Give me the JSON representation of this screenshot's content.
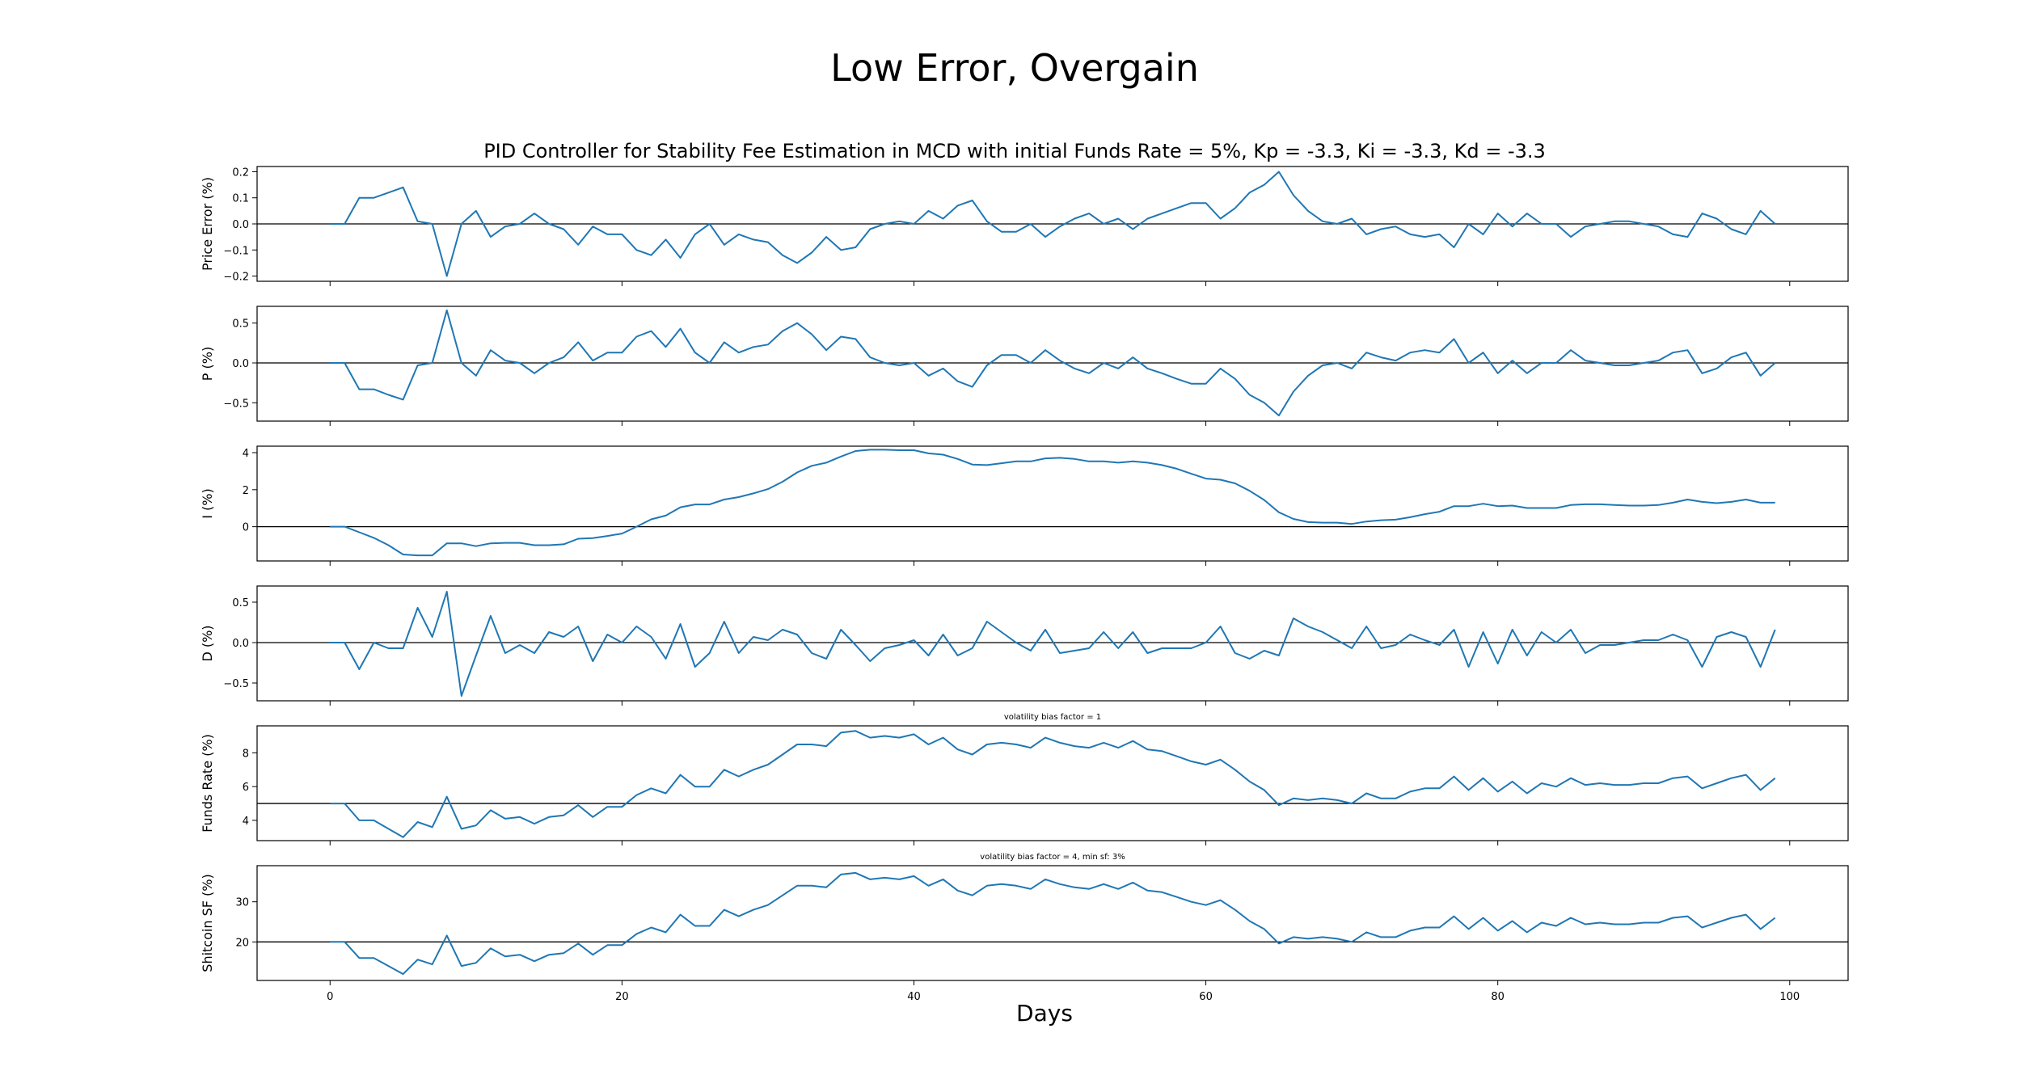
{
  "figure": {
    "title": "Low Error, Overgain",
    "subtitle": "PID Controller for Stability Fee Estimation in MCD with initial Funds Rate = 5%, Kp = -3.3, Ki = -3.3, Kd = -3.3",
    "xlabel": "Days"
  },
  "colors": {
    "line": "#1f77b4",
    "refline": "#000000",
    "axes": "#000000"
  },
  "chart_data": [
    {
      "type": "line",
      "ylabel": "Price Error (%)",
      "ylim": [
        -0.22,
        0.22
      ],
      "yticks": [
        0.2,
        0.1,
        0.0,
        -0.1,
        -0.2
      ],
      "ytick_labels": [
        "0.2",
        "0.1",
        "0.0",
        "−0.1",
        "−0.2"
      ],
      "hline": 0,
      "annotation": "",
      "x_start": 0,
      "values": [
        0,
        0,
        0.1,
        0.1,
        0.12,
        0.14,
        0.01,
        0,
        -0.2,
        0,
        0.05,
        -0.05,
        -0.01,
        0,
        0.04,
        0,
        -0.02,
        -0.08,
        -0.01,
        -0.04,
        -0.04,
        -0.1,
        -0.12,
        -0.06,
        -0.13,
        -0.04,
        0,
        -0.08,
        -0.04,
        -0.06,
        -0.07,
        -0.12,
        -0.15,
        -0.11,
        -0.05,
        -0.1,
        -0.09,
        -0.02,
        0,
        0.01,
        0,
        0.05,
        0.02,
        0.07,
        0.09,
        0.01,
        -0.03,
        -0.03,
        0,
        -0.05,
        -0.01,
        0.02,
        0.04,
        0,
        0.02,
        -0.02,
        0.02,
        0.04,
        0.06,
        0.08,
        0.08,
        0.02,
        0.06,
        0.12,
        0.15,
        0.2,
        0.11,
        0.05,
        0.01,
        0,
        0.02,
        -0.04,
        -0.02,
        -0.01,
        -0.04,
        -0.05,
        -0.04,
        -0.09,
        0,
        -0.04,
        0.04,
        -0.01,
        0.04,
        0,
        0,
        -0.05,
        -0.01,
        0,
        0.01,
        0.01,
        0,
        -0.01,
        -0.04,
        -0.05,
        0.04,
        0.02,
        -0.02,
        -0.04,
        0.05,
        0
      ]
    },
    {
      "type": "line",
      "ylabel": "P (%)",
      "ylim": [
        -0.73,
        0.71
      ],
      "yticks": [
        0.5,
        0.0,
        -0.5
      ],
      "ytick_labels": [
        "0.5",
        "0.0",
        "−0.5"
      ],
      "hline": 0,
      "annotation": "",
      "x_start": 0,
      "values": [
        0,
        0,
        -0.33,
        -0.33,
        -0.4,
        -0.46,
        -0.03,
        0,
        0.66,
        0,
        -0.16,
        0.16,
        0.03,
        0,
        -0.13,
        0,
        0.07,
        0.26,
        0.03,
        0.13,
        0.13,
        0.33,
        0.4,
        0.2,
        0.43,
        0.13,
        0,
        0.26,
        0.13,
        0.2,
        0.23,
        0.4,
        0.5,
        0.36,
        0.16,
        0.33,
        0.3,
        0.07,
        0,
        -0.03,
        0,
        -0.16,
        -0.07,
        -0.23,
        -0.3,
        -0.03,
        0.1,
        0.1,
        0,
        0.16,
        0.03,
        -0.07,
        -0.13,
        0,
        -0.07,
        0.07,
        -0.07,
        -0.13,
        -0.2,
        -0.26,
        -0.26,
        -0.07,
        -0.2,
        -0.4,
        -0.5,
        -0.66,
        -0.36,
        -0.16,
        -0.03,
        0,
        -0.07,
        0.13,
        0.07,
        0.03,
        0.13,
        0.16,
        0.13,
        0.3,
        0,
        0.13,
        -0.13,
        0.03,
        -0.13,
        0,
        0,
        0.16,
        0.03,
        0,
        -0.03,
        -0.03,
        0,
        0.03,
        0.13,
        0.16,
        -0.13,
        -0.07,
        0.07,
        0.13,
        -0.16,
        0
      ]
    },
    {
      "type": "line",
      "ylabel": "I (%)",
      "ylim": [
        -1.85,
        4.35
      ],
      "yticks": [
        4,
        2,
        0
      ],
      "ytick_labels": [
        "4",
        "2",
        "0"
      ],
      "hline": 0,
      "annotation": "",
      "x_start": 0,
      "values": [
        0,
        0,
        -0.3,
        -0.6,
        -1.0,
        -1.5,
        -1.55,
        -1.55,
        -0.9,
        -0.9,
        -1.05,
        -0.9,
        -0.87,
        -0.87,
        -1.0,
        -1.0,
        -0.95,
        -0.65,
        -0.62,
        -0.5,
        -0.37,
        0,
        0.4,
        0.6,
        1.05,
        1.2,
        1.2,
        1.47,
        1.6,
        1.8,
        2.03,
        2.43,
        2.93,
        3.29,
        3.46,
        3.79,
        4.09,
        4.16,
        4.16,
        4.13,
        4.13,
        3.96,
        3.89,
        3.66,
        3.36,
        3.33,
        3.43,
        3.53,
        3.53,
        3.69,
        3.72,
        3.66,
        3.53,
        3.53,
        3.46,
        3.53,
        3.46,
        3.33,
        3.13,
        2.86,
        2.6,
        2.54,
        2.34,
        1.94,
        1.44,
        0.78,
        0.42,
        0.25,
        0.22,
        0.22,
        0.15,
        0.28,
        0.35,
        0.38,
        0.51,
        0.68,
        0.81,
        1.11,
        1.11,
        1.24,
        1.11,
        1.14,
        1.01,
        1.01,
        1.01,
        1.17,
        1.21,
        1.21,
        1.17,
        1.14,
        1.14,
        1.17,
        1.3,
        1.47,
        1.34,
        1.27,
        1.34,
        1.47,
        1.3,
        1.3
      ]
    },
    {
      "type": "line",
      "ylabel": "D (%)",
      "ylim": [
        -0.72,
        0.7
      ],
      "yticks": [
        0.5,
        0.0,
        -0.5
      ],
      "ytick_labels": [
        "0.5",
        "0.0",
        "−0.5"
      ],
      "hline": 0,
      "annotation": "",
      "x_start": 0,
      "values": [
        0,
        0,
        -0.33,
        0,
        -0.07,
        -0.07,
        0.43,
        0.07,
        0.63,
        -0.66,
        -0.16,
        0.33,
        -0.13,
        -0.03,
        -0.13,
        0.13,
        0.07,
        0.2,
        -0.23,
        0.1,
        0,
        0.2,
        0.07,
        -0.2,
        0.23,
        -0.3,
        -0.13,
        0.26,
        -0.13,
        0.07,
        0.03,
        0.16,
        0.1,
        -0.13,
        -0.2,
        0.16,
        -0.03,
        -0.23,
        -0.07,
        -0.03,
        0.03,
        -0.16,
        0.1,
        -0.16,
        -0.07,
        0.26,
        0.13,
        0,
        -0.1,
        0.16,
        -0.13,
        -0.1,
        -0.07,
        0.13,
        -0.07,
        0.13,
        -0.13,
        -0.07,
        -0.07,
        -0.07,
        0,
        0.2,
        -0.13,
        -0.2,
        -0.1,
        -0.16,
        0.3,
        0.2,
        0.13,
        0.03,
        -0.07,
        0.2,
        -0.07,
        -0.03,
        0.1,
        0.03,
        -0.03,
        0.16,
        -0.3,
        0.13,
        -0.26,
        0.16,
        -0.16,
        0.13,
        0,
        0.16,
        -0.13,
        -0.03,
        -0.03,
        0,
        0.03,
        0.03,
        0.1,
        0.03,
        -0.3,
        0.07,
        0.13,
        0.07,
        -0.3,
        0.16
      ]
    },
    {
      "type": "line",
      "ylabel": "Funds Rate (%)",
      "ylim": [
        2.8,
        9.6
      ],
      "yticks": [
        8,
        6,
        4
      ],
      "ytick_labels": [
        "8",
        "6",
        "4"
      ],
      "hline": 5,
      "annotation": "volatility bias factor = 1",
      "x_start": 0,
      "values": [
        5,
        5,
        4,
        4,
        3.5,
        3,
        3.9,
        3.6,
        5.4,
        3.5,
        3.7,
        4.6,
        4.1,
        4.2,
        3.8,
        4.2,
        4.3,
        4.9,
        4.2,
        4.8,
        4.8,
        5.5,
        5.9,
        5.6,
        6.7,
        6,
        6,
        7,
        6.6,
        7,
        7.3,
        7.9,
        8.5,
        8.5,
        8.4,
        9.2,
        9.3,
        8.9,
        9,
        8.9,
        9.1,
        8.5,
        8.9,
        8.2,
        7.9,
        8.5,
        8.6,
        8.5,
        8.3,
        8.9,
        8.6,
        8.4,
        8.3,
        8.6,
        8.3,
        8.7,
        8.2,
        8.1,
        7.8,
        7.5,
        7.3,
        7.6,
        7,
        6.3,
        5.8,
        4.9,
        5.3,
        5.2,
        5.3,
        5.2,
        5,
        5.6,
        5.3,
        5.3,
        5.7,
        5.9,
        5.9,
        6.6,
        5.8,
        6.5,
        5.7,
        6.3,
        5.6,
        6.2,
        6,
        6.5,
        6.1,
        6.2,
        6.1,
        6.1,
        6.2,
        6.2,
        6.5,
        6.6,
        5.9,
        6.2,
        6.5,
        6.7,
        5.8,
        6.5
      ]
    },
    {
      "type": "line",
      "ylabel": "Shitcoin SF (%)",
      "ylim": [
        10.4,
        39
      ],
      "yticks": [
        30,
        20
      ],
      "ytick_labels": [
        "30",
        "20"
      ],
      "hline": 20,
      "annotation": "volatility bias factor = 4, min sf: 3%",
      "x_start": 0,
      "values": [
        20,
        20,
        16,
        16,
        14,
        12,
        15.6,
        14.4,
        21.6,
        14,
        14.8,
        18.4,
        16.4,
        16.8,
        15.2,
        16.8,
        17.2,
        19.6,
        16.8,
        19.2,
        19.2,
        22,
        23.6,
        22.4,
        26.8,
        24,
        24,
        28,
        26.4,
        28,
        29.2,
        31.6,
        34,
        34,
        33.6,
        36.8,
        37.2,
        35.6,
        36,
        35.6,
        36.4,
        34,
        35.6,
        32.8,
        31.6,
        34,
        34.4,
        34,
        33.2,
        35.6,
        34.4,
        33.6,
        33.2,
        34.4,
        33.2,
        34.8,
        32.8,
        32.4,
        31.2,
        30,
        29.2,
        30.4,
        28,
        25.2,
        23.2,
        19.6,
        21.2,
        20.8,
        21.2,
        20.8,
        20,
        22.4,
        21.2,
        21.2,
        22.8,
        23.6,
        23.6,
        26.4,
        23.2,
        26,
        22.8,
        25.2,
        22.4,
        24.8,
        24,
        26,
        24.4,
        24.8,
        24.4,
        24.4,
        24.8,
        24.8,
        26,
        26.4,
        23.6,
        24.8,
        26,
        26.8,
        23.2,
        26
      ]
    }
  ],
  "xaxis": {
    "xlim": [
      -5,
      104
    ],
    "ticks": [
      0,
      20,
      40,
      60,
      80,
      100
    ],
    "tick_labels": [
      "0",
      "20",
      "40",
      "60",
      "80",
      "100"
    ]
  }
}
